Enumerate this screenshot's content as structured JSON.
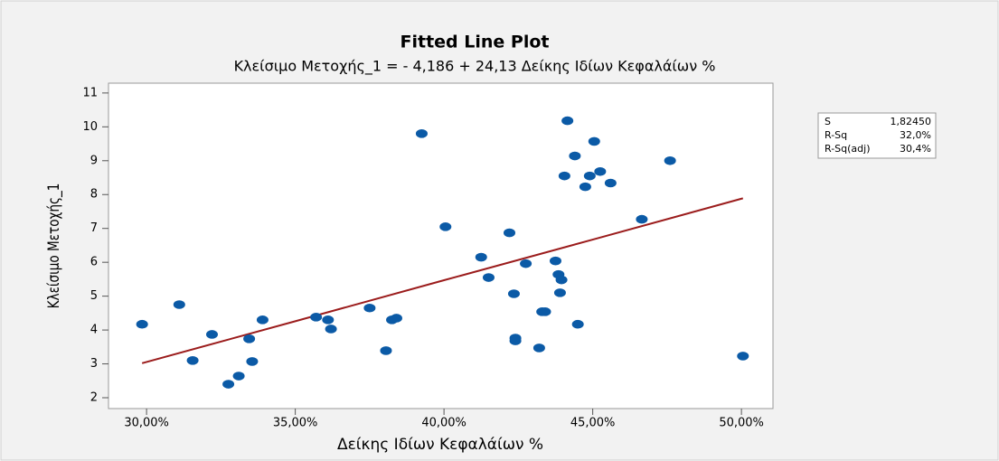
{
  "chart_data": {
    "type": "scatter",
    "title": "Fitted Line Plot",
    "subtitle": "Κλείσιμο Μετοχής_1 = - 4,186 + 24,13 Δείκης Ιδίων Κεφαλάίων %",
    "x_label": "Δείκης Ιδίων Κεφαλάίων %",
    "y_label": "Κλείσιμο Μετοχής_1",
    "xlim": [
      28.72,
      51.06
    ],
    "ylim": [
      1.68,
      11.29
    ],
    "xticks": [
      {
        "value": 30,
        "label": "30,00%"
      },
      {
        "value": 35,
        "label": "35,00%"
      },
      {
        "value": 40,
        "label": "40,00%"
      },
      {
        "value": 45,
        "label": "45,00%"
      },
      {
        "value": 50,
        "label": "50,00%"
      }
    ],
    "yticks": [
      2,
      3,
      4,
      5,
      6,
      7,
      8,
      9,
      10,
      11
    ],
    "series": [
      {
        "type": "scatter",
        "color": "#0b5aa6",
        "x": [
          29.85,
          31.1,
          31.55,
          32.2,
          32.75,
          33.1,
          33.45,
          33.55,
          33.9,
          35.7,
          36.1,
          36.2,
          37.5,
          38.05,
          38.25,
          38.4,
          39.25,
          40.05,
          41.25,
          41.5,
          42.2,
          42.35,
          42.4,
          42.4,
          42.75,
          43.2,
          43.3,
          43.4,
          43.75,
          43.85,
          43.9,
          43.95,
          44.05,
          44.15,
          44.4,
          44.5,
          44.75,
          44.9,
          45.05,
          45.25,
          45.6,
          46.65,
          47.6,
          50.05
        ],
        "values": [
          4.17,
          4.75,
          3.1,
          3.87,
          2.4,
          2.64,
          3.74,
          3.07,
          4.3,
          4.38,
          4.3,
          4.03,
          4.65,
          3.39,
          4.3,
          4.35,
          9.8,
          7.05,
          6.15,
          5.55,
          6.87,
          5.07,
          3.76,
          3.68,
          5.96,
          3.47,
          4.54,
          4.54,
          6.04,
          5.64,
          5.1,
          5.48,
          8.55,
          10.18,
          9.14,
          4.17,
          8.23,
          8.55,
          9.57,
          8.68,
          8.34,
          7.27,
          9.0,
          3.23
        ]
      },
      {
        "type": "line",
        "color": "#9b1c1c",
        "x": [
          29.85,
          35,
          40,
          45,
          50.05
        ],
        "values": [
          3.02,
          4.26,
          5.47,
          6.67,
          7.89
        ]
      }
    ],
    "stats": {
      "rows": [
        [
          "S",
          "1,82450"
        ],
        [
          "R-Sq",
          "32,0%"
        ],
        [
          "R-Sq(adj)",
          "30,4%"
        ]
      ]
    }
  }
}
